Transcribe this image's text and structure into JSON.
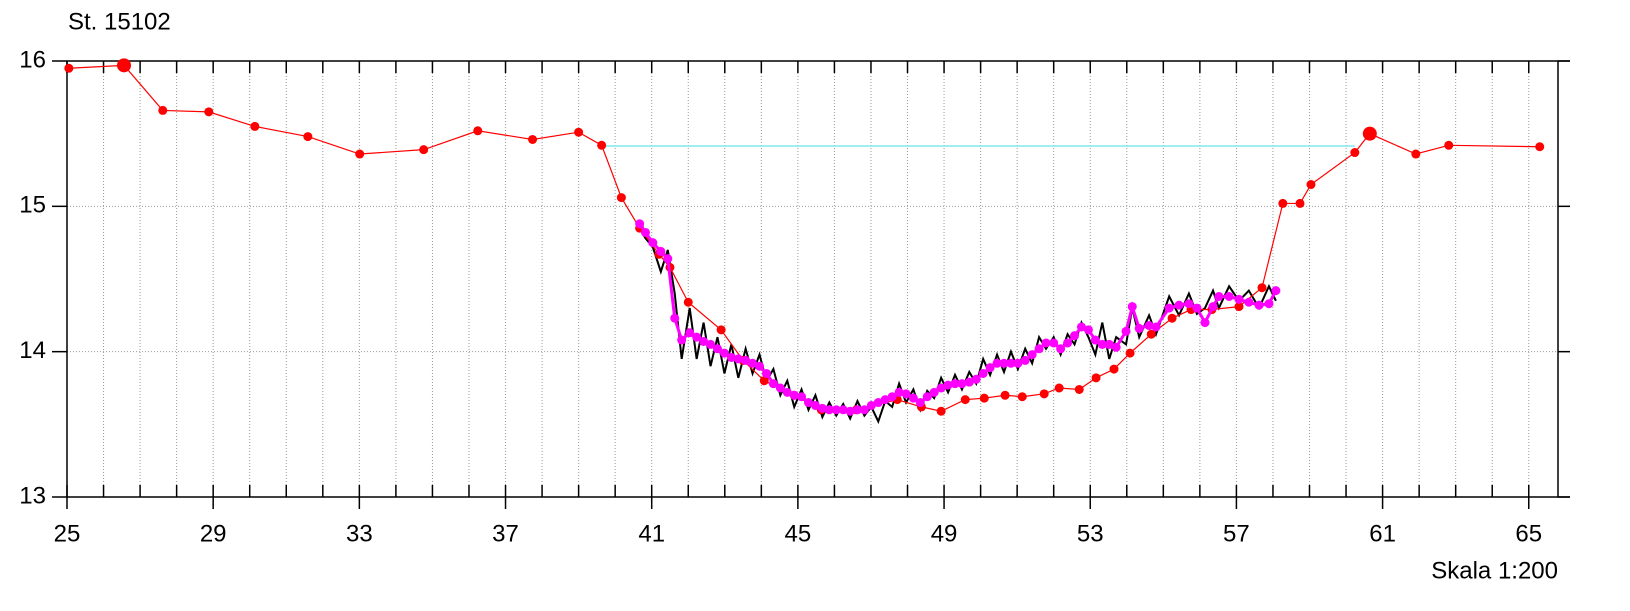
{
  "chart_data": {
    "type": "profile",
    "title": "St. 15102",
    "scale_label": "Skala 1:200",
    "xlim": [
      25,
      65.8
    ],
    "ylim": [
      13,
      16
    ],
    "xticks": [
      25,
      29,
      33,
      37,
      41,
      45,
      49,
      53,
      57,
      61,
      65
    ],
    "yticks": [
      13,
      14,
      15,
      16
    ],
    "xgrid": [
      25,
      26,
      27,
      28,
      29,
      30,
      31,
      32,
      33,
      34,
      35,
      36,
      37,
      38,
      39,
      40,
      41,
      42,
      43,
      44,
      45,
      46,
      47,
      48,
      49,
      50,
      51,
      52,
      53,
      54,
      55,
      56,
      57,
      58,
      59,
      60,
      61,
      62,
      63,
      64,
      65
    ],
    "ygrid": [
      14,
      15
    ],
    "water_level": {
      "color": "#80e8f0",
      "x": [
        39.63,
        60.24
      ],
      "values": [
        15.415,
        15.415
      ]
    },
    "survey": {
      "color": "#ff0000",
      "x": [
        25.05,
        26.56,
        27.62,
        28.88,
        30.14,
        31.59,
        33.01,
        34.76,
        36.24,
        37.74,
        39.0,
        39.63,
        40.17,
        40.67,
        41.2,
        41.5,
        42.0,
        42.9,
        43.5,
        44.08,
        44.9,
        45.64,
        46.6,
        47.72,
        48.38,
        48.92,
        49.58,
        50.1,
        50.67,
        51.14,
        51.74,
        52.15,
        52.7,
        53.16,
        53.65,
        54.09,
        54.67,
        55.24,
        55.76,
        56.33,
        57.07,
        57.7,
        58.27,
        58.74,
        59.04,
        60.24,
        60.65,
        61.91,
        62.81,
        65.3
      ],
      "values": [
        15.95,
        15.97,
        15.66,
        15.65,
        15.55,
        15.48,
        15.36,
        15.39,
        15.52,
        15.46,
        15.51,
        15.42,
        15.06,
        14.85,
        14.67,
        14.58,
        14.34,
        14.15,
        13.94,
        13.8,
        13.7,
        13.6,
        13.6,
        13.67,
        13.62,
        13.59,
        13.67,
        13.68,
        13.7,
        13.69,
        13.71,
        13.75,
        13.74,
        13.82,
        13.88,
        13.99,
        14.12,
        14.23,
        14.29,
        14.29,
        14.31,
        14.44,
        15.02,
        15.02,
        15.15,
        15.37,
        15.5,
        15.36,
        15.42,
        15.41
      ]
    },
    "bank_points": {
      "color": "#ff0000",
      "x": [
        26.56,
        60.65
      ],
      "values": [
        15.97,
        15.5
      ]
    },
    "sonar": {
      "color": "#000000",
      "x": [
        40.67,
        40.83,
        41.03,
        41.25,
        41.44,
        41.63,
        41.82,
        42.04,
        42.23,
        42.42,
        42.61,
        42.8,
        42.99,
        43.18,
        43.37,
        43.57,
        43.76,
        43.95,
        44.14,
        44.33,
        44.52,
        44.71,
        44.9,
        45.1,
        45.29,
        45.48,
        45.67,
        45.86,
        46.05,
        46.24,
        46.43,
        46.63,
        46.82,
        47.01,
        47.2,
        47.39,
        47.58,
        47.77,
        47.96,
        48.16,
        48.35,
        48.54,
        48.73,
        48.92,
        49.11,
        49.3,
        49.49,
        49.69,
        49.88,
        50.07,
        50.26,
        50.45,
        50.64,
        50.83,
        51.02,
        51.22,
        51.41,
        51.6,
        51.79,
        52.0,
        52.19,
        52.38,
        52.57,
        52.76,
        52.95,
        53.14,
        53.33,
        53.52,
        53.71,
        53.98,
        54.15,
        54.34,
        54.61,
        54.8,
        55.16,
        55.43,
        55.7,
        55.92,
        56.14,
        56.36,
        56.52,
        56.8,
        57.07,
        57.34,
        57.62,
        57.89,
        58.08
      ],
      "values": [
        14.85,
        14.78,
        14.72,
        14.55,
        14.7,
        14.4,
        13.95,
        14.3,
        13.95,
        14.2,
        13.9,
        14.1,
        13.85,
        14.05,
        13.82,
        14.02,
        13.85,
        13.98,
        13.8,
        13.88,
        13.7,
        13.8,
        13.62,
        13.74,
        13.6,
        13.7,
        13.55,
        13.65,
        13.56,
        13.64,
        13.54,
        13.66,
        13.56,
        13.62,
        13.52,
        13.66,
        13.62,
        13.78,
        13.65,
        13.74,
        13.6,
        13.73,
        13.68,
        13.82,
        13.72,
        13.84,
        13.74,
        13.86,
        13.78,
        13.95,
        13.84,
        13.98,
        13.86,
        14.0,
        13.88,
        14.02,
        13.92,
        14.1,
        14.02,
        14.1,
        13.98,
        14.12,
        14.05,
        14.2,
        14.1,
        13.98,
        14.2,
        13.95,
        14.1,
        14.05,
        14.3,
        14.1,
        14.25,
        14.12,
        14.38,
        14.25,
        14.4,
        14.26,
        14.3,
        14.42,
        14.3,
        14.45,
        14.35,
        14.42,
        14.3,
        14.45,
        14.35
      ]
    },
    "smoothed": {
      "color": "#ff00ff",
      "x": [
        40.67,
        40.83,
        41.03,
        41.25,
        41.44,
        41.63,
        41.82,
        42.04,
        42.23,
        42.42,
        42.61,
        42.8,
        42.99,
        43.18,
        43.37,
        43.57,
        43.76,
        43.95,
        44.14,
        44.33,
        44.52,
        44.71,
        44.9,
        45.1,
        45.29,
        45.48,
        45.67,
        45.86,
        46.05,
        46.24,
        46.43,
        46.63,
        46.82,
        47.01,
        47.2,
        47.39,
        47.58,
        47.77,
        47.96,
        48.16,
        48.35,
        48.54,
        48.73,
        48.92,
        49.11,
        49.3,
        49.49,
        49.69,
        49.88,
        50.07,
        50.26,
        50.45,
        50.64,
        50.83,
        51.02,
        51.22,
        51.41,
        51.6,
        51.79,
        52.0,
        52.19,
        52.38,
        52.57,
        52.76,
        52.95,
        53.14,
        53.33,
        53.52,
        53.71,
        53.98,
        54.15,
        54.34,
        54.61,
        54.8,
        55.16,
        55.43,
        55.7,
        55.92,
        56.14,
        56.36,
        56.52,
        56.8,
        57.07,
        57.34,
        57.62,
        57.89,
        58.08
      ],
      "values": [
        14.88,
        14.82,
        14.75,
        14.69,
        14.64,
        14.23,
        14.08,
        14.13,
        14.1,
        14.07,
        14.05,
        14.02,
        13.99,
        13.96,
        13.95,
        13.94,
        13.92,
        13.9,
        13.85,
        13.78,
        13.75,
        13.72,
        13.7,
        13.69,
        13.65,
        13.63,
        13.61,
        13.6,
        13.6,
        13.6,
        13.59,
        13.6,
        13.6,
        13.63,
        13.65,
        13.67,
        13.69,
        13.72,
        13.71,
        13.68,
        13.65,
        13.69,
        13.72,
        13.75,
        13.77,
        13.78,
        13.78,
        13.79,
        13.81,
        13.85,
        13.89,
        13.92,
        13.92,
        13.92,
        13.92,
        13.94,
        13.98,
        14.02,
        14.06,
        14.06,
        14.02,
        14.06,
        14.11,
        14.17,
        14.15,
        14.08,
        14.05,
        14.05,
        14.03,
        14.14,
        14.31,
        14.16,
        14.18,
        14.17,
        14.3,
        14.32,
        14.33,
        14.3,
        14.2,
        14.31,
        14.38,
        14.38,
        14.36,
        14.34,
        14.32,
        14.33,
        14.42
      ]
    }
  }
}
